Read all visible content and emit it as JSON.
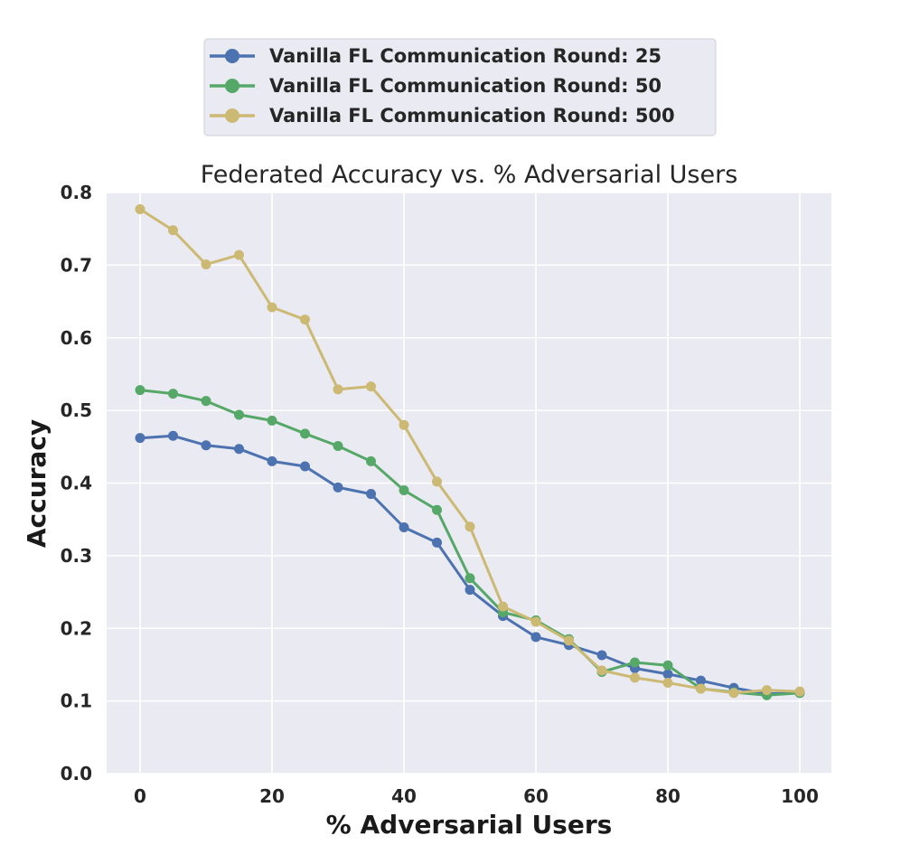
{
  "chart_data": {
    "type": "line",
    "title": "Federated Accuracy vs. % Adversarial Users",
    "xlabel": "% Adversarial Users",
    "ylabel": "Accuracy",
    "xlim": [
      -5,
      105
    ],
    "ylim": [
      0.0,
      0.8
    ],
    "xticks": [
      0,
      20,
      40,
      60,
      80,
      100
    ],
    "yticks": [
      0.0,
      0.1,
      0.2,
      0.3,
      0.4,
      0.5,
      0.6,
      0.7,
      0.8
    ],
    "xtick_labels": [
      "0",
      "20",
      "40",
      "60",
      "80",
      "100"
    ],
    "ytick_labels": [
      "0.0",
      "0.1",
      "0.2",
      "0.3",
      "0.4",
      "0.5",
      "0.6",
      "0.7",
      "0.8"
    ],
    "grid": true,
    "legend_position": "top-center, above plot",
    "x": [
      0,
      5,
      10,
      15,
      20,
      25,
      30,
      35,
      40,
      45,
      50,
      55,
      60,
      65,
      70,
      75,
      80,
      85,
      90,
      95,
      100
    ],
    "series": [
      {
        "name": "Vanilla FL Communication Round: 25",
        "color": "#4C72B0",
        "values": [
          0.462,
          0.465,
          0.452,
          0.447,
          0.43,
          0.423,
          0.394,
          0.385,
          0.339,
          0.318,
          0.253,
          0.217,
          0.188,
          0.177,
          0.163,
          0.145,
          0.137,
          0.128,
          0.118,
          0.11,
          0.111
        ]
      },
      {
        "name": "Vanilla FL Communication Round: 50",
        "color": "#55A868",
        "values": [
          0.528,
          0.523,
          0.513,
          0.494,
          0.486,
          0.468,
          0.451,
          0.43,
          0.39,
          0.363,
          0.269,
          0.222,
          0.211,
          0.185,
          0.14,
          0.153,
          0.149,
          0.117,
          0.112,
          0.108,
          0.111
        ]
      },
      {
        "name": "Vanilla FL Communication Round: 500",
        "color": "#CCB974",
        "values": [
          0.777,
          0.748,
          0.701,
          0.714,
          0.642,
          0.625,
          0.529,
          0.533,
          0.48,
          0.402,
          0.34,
          0.23,
          0.209,
          0.183,
          0.142,
          0.132,
          0.125,
          0.117,
          0.111,
          0.115,
          0.113
        ]
      }
    ]
  }
}
